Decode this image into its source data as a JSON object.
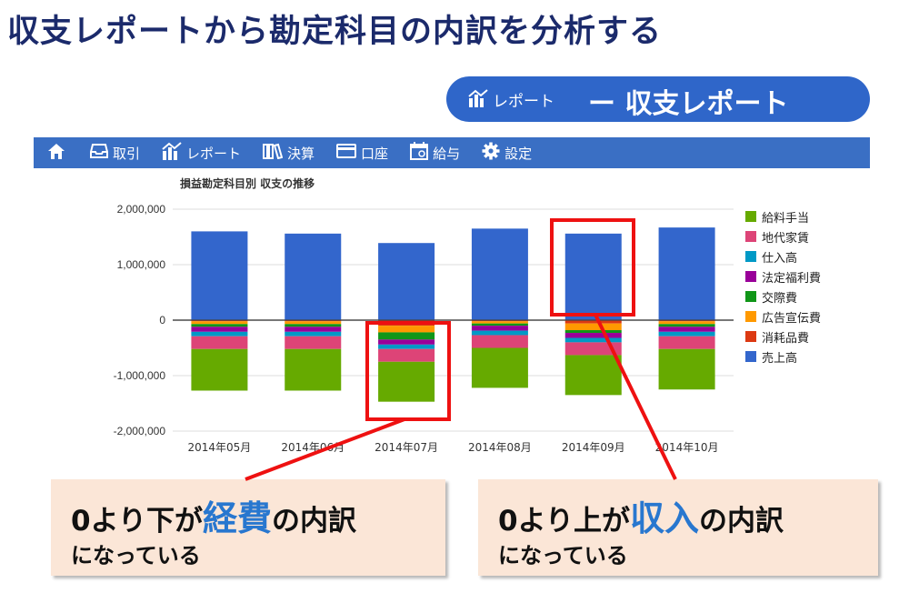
{
  "page": {
    "title": "収支レポートから勘定科目の内訳を分析する"
  },
  "pill": {
    "small_label": "レポート",
    "big_label": "ー 収支レポート",
    "icon": "report-chart-icon"
  },
  "navbar": {
    "items": [
      {
        "label": "",
        "icon": "home-icon"
      },
      {
        "label": "取引",
        "icon": "inbox-icon"
      },
      {
        "label": "レポート",
        "icon": "report-chart-icon"
      },
      {
        "label": "決算",
        "icon": "books-icon"
      },
      {
        "label": "口座",
        "icon": "card-icon"
      },
      {
        "label": "給与",
        "icon": "calendar-icon"
      },
      {
        "label": "設定",
        "icon": "gear-icon"
      }
    ]
  },
  "chart_data": {
    "type": "bar",
    "stacked": true,
    "title": "損益勘定科目別 収支の推移",
    "categories": [
      "2014年05月",
      "2014年06月",
      "2014年07月",
      "2014年08月",
      "2014年09月",
      "2014年10月"
    ],
    "yticks": [
      "2,000,000",
      "1,000,000",
      "0",
      "-1,000,000",
      "-2,000,000"
    ],
    "ylim": [
      -2000000,
      2000000
    ],
    "legend_position": "right",
    "series": [
      {
        "name": "給料手当",
        "color": "#66aa00",
        "values": [
          -750000,
          -750000,
          -720000,
          -720000,
          -720000,
          -730000
        ]
      },
      {
        "name": "地代家賃",
        "color": "#dd4477",
        "values": [
          -230000,
          -230000,
          -230000,
          -230000,
          -230000,
          -230000
        ]
      },
      {
        "name": "仕入高",
        "color": "#0099c6",
        "values": [
          -80000,
          -80000,
          -80000,
          -80000,
          -80000,
          -80000
        ]
      },
      {
        "name": "法定福利費",
        "color": "#990099",
        "values": [
          -90000,
          -90000,
          -90000,
          -90000,
          -90000,
          -90000
        ]
      },
      {
        "name": "交際費",
        "color": "#109618",
        "values": [
          -50000,
          -50000,
          -130000,
          -40000,
          -50000,
          -50000
        ]
      },
      {
        "name": "広告宣伝費",
        "color": "#ff9900",
        "values": [
          -50000,
          -50000,
          -120000,
          -40000,
          -120000,
          -50000
        ]
      },
      {
        "name": "消耗品費",
        "color": "#dc3912",
        "values": [
          -20000,
          -20000,
          -100000,
          -20000,
          -60000,
          -20000
        ]
      },
      {
        "name": "売上高",
        "color": "#3366cc",
        "values": [
          1600000,
          1560000,
          1390000,
          1650000,
          1560000,
          1670000
        ]
      }
    ]
  },
  "callouts": {
    "left": {
      "pre": "0より下が",
      "highlight": "経費",
      "post": "の内訳",
      "line2": "になっている"
    },
    "right": {
      "pre": "0より上が",
      "highlight": "収入",
      "post": "の内訳",
      "line2": "になっている"
    }
  },
  "colors": {
    "title": "#1b2a6b",
    "pill": "#2f66c9",
    "navbar": "#3a6fc4",
    "callout_bg": "#fbe6d7",
    "highlight_text": "#2877cf",
    "annotation_red": "#ee1111"
  }
}
